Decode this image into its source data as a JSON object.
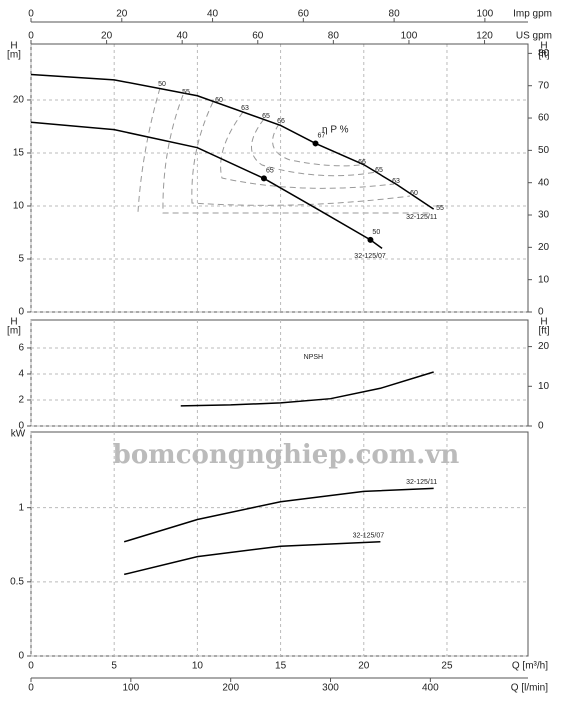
{
  "watermark": "bomcongnghiep.com.vn",
  "chart_data": [
    {
      "type": "line",
      "ylabel": "H",
      "yunit": "[m]",
      "y2label": "H",
      "y2unit": "[ft]",
      "xlim": [
        0,
        29.87
      ],
      "xticks": [
        0,
        5,
        10,
        15,
        20,
        25
      ],
      "ylim": [
        0,
        25.28
      ],
      "yticks": [
        0,
        5,
        10,
        15,
        20
      ],
      "y2lim": [
        0,
        82.9
      ],
      "y2ticks": [
        0,
        10,
        20,
        30,
        40,
        50,
        60,
        70,
        80
      ],
      "x2_axes": [
        {
          "label": "Imp gpm",
          "xlim": [
            0,
            109.5
          ],
          "xticks": [
            0,
            20,
            40,
            60,
            80,
            100
          ]
        },
        {
          "label": "US gpm",
          "xlim": [
            0,
            131.5
          ],
          "xticks": [
            0,
            20,
            40,
            60,
            80,
            100,
            120
          ]
        }
      ],
      "series": [
        {
          "name": "32-125/11",
          "color": "#000",
          "x": [
            0,
            5,
            10,
            15,
            17.1,
            20,
            22,
            24.2
          ],
          "values": [
            22.4,
            21.9,
            20.4,
            17.6,
            15.9,
            13.9,
            12.0,
            9.7
          ]
        },
        {
          "name": "32-125/07",
          "color": "#000",
          "x": [
            0,
            5,
            10,
            14,
            17,
            20.4,
            21.1
          ],
          "values": [
            17.9,
            17.2,
            15.5,
            12.6,
            9.9,
            6.8,
            6.0
          ]
        }
      ],
      "points": [
        {
          "label": "67",
          "x": 17.1,
          "y": 15.9
        },
        {
          "label": "65",
          "x": 14,
          "y": 12.6
        },
        {
          "label": "50",
          "x": 20.4,
          "y": 6.8
        }
      ],
      "efficiency_label": "η P %",
      "efficiency_levels": [
        "50",
        "55",
        "60",
        "63",
        "65",
        "66",
        "66",
        "65",
        "63",
        "60",
        "55"
      ],
      "grid": true
    },
    {
      "type": "line",
      "ylabel": "H",
      "yunit": "[m]",
      "y2label": "H",
      "y2unit": "[ft]",
      "xlim": [
        0,
        29.87
      ],
      "xticks": [
        0,
        5,
        10,
        15,
        20,
        25
      ],
      "ylim": [
        0,
        8.15
      ],
      "yticks": [
        0,
        2,
        4,
        6
      ],
      "y2lim": [
        0,
        26.7
      ],
      "y2ticks": [
        0,
        10,
        20
      ],
      "series": [
        {
          "name": "NPSH",
          "color": "#000",
          "x": [
            9,
            12,
            15,
            18,
            21,
            24.2
          ],
          "values": [
            1.55,
            1.62,
            1.78,
            2.1,
            2.9,
            4.15
          ]
        }
      ],
      "grid": true
    },
    {
      "type": "line",
      "ylabel": "kW",
      "xlabel": "Q [m³/h]",
      "xlim": [
        0,
        29.87
      ],
      "xticks": [
        0,
        5,
        10,
        15,
        20,
        25
      ],
      "ylim": [
        0,
        1.51
      ],
      "yticks": [
        0,
        {
          "value": 0.5,
          "label": "0.5"
        },
        1
      ],
      "x3_axis": {
        "label": "Q [l/min]",
        "xlim": [
          0,
          497.8
        ],
        "xticks": [
          0,
          100,
          200,
          300,
          400
        ]
      },
      "series": [
        {
          "name": "32-125/11",
          "color": "#000",
          "x": [
            5.6,
            10,
            15,
            20,
            24.2
          ],
          "values": [
            0.77,
            0.92,
            1.04,
            1.11,
            1.13
          ]
        },
        {
          "name": "32-125/07",
          "color": "#000",
          "x": [
            5.6,
            10,
            15,
            21
          ],
          "values": [
            0.55,
            0.67,
            0.74,
            0.77
          ]
        }
      ],
      "grid": true
    }
  ]
}
